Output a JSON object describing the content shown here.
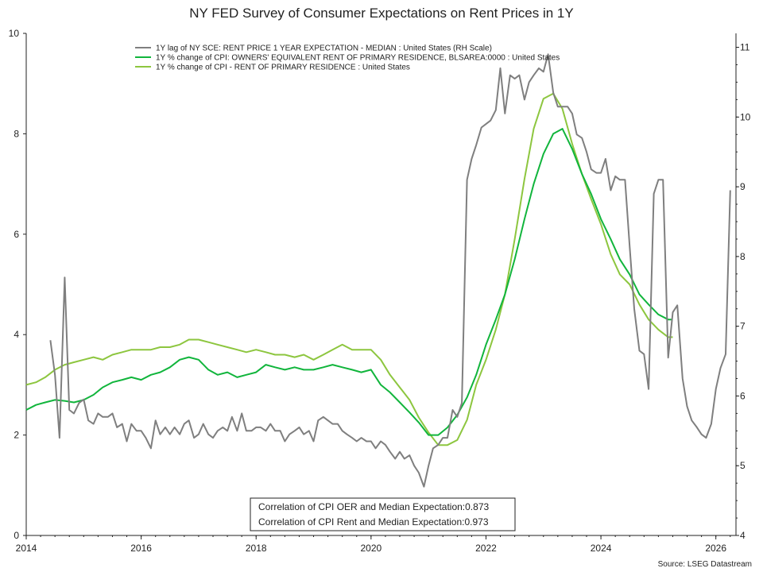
{
  "chart_data": {
    "type": "line",
    "title": "NY FED Survey of Consumer Expectations on Rent Prices in 1Y",
    "source": "Source: LSEG Datastream",
    "x_range": [
      2014.0,
      2026.35
    ],
    "x_ticks": [
      "2014",
      "2016",
      "2018",
      "2020",
      "2022",
      "2024",
      "2026"
    ],
    "x_tick_values": [
      2014,
      2016,
      2018,
      2020,
      2022,
      2024,
      2026
    ],
    "ylim_left": [
      0,
      10
    ],
    "y_ticks_left": [
      "0",
      "2",
      "4",
      "6",
      "8",
      "10"
    ],
    "y_tick_values_left": [
      0,
      2,
      4,
      6,
      8,
      10
    ],
    "ylim_right": [
      4,
      11.2
    ],
    "y_ticks_right": [
      "4",
      "5",
      "6",
      "7",
      "8",
      "9",
      "10",
      "11"
    ],
    "y_tick_values_right": [
      4,
      5,
      6,
      7,
      8,
      9,
      10,
      11
    ],
    "legend_position": "top",
    "grid": false,
    "annotations": [
      "Correlation of CPI OER and Median Expectation:0.873",
      "Correlation of CPI Rent and Median Expectation:0.973"
    ],
    "series": [
      {
        "name": "1Y lag of NY SCE: RENT PRICE 1 YEAR EXPECTATION - MEDIAN : United States (RH Scale)",
        "axis": "right",
        "color": "#7f7f7f",
        "x": [
          2014.42,
          2014.5,
          2014.58,
          2014.67,
          2014.75,
          2014.83,
          2014.92,
          2015.0,
          2015.08,
          2015.17,
          2015.25,
          2015.33,
          2015.42,
          2015.5,
          2015.58,
          2015.67,
          2015.75,
          2015.83,
          2015.92,
          2016.0,
          2016.08,
          2016.17,
          2016.25,
          2016.33,
          2016.42,
          2016.5,
          2016.58,
          2016.67,
          2016.75,
          2016.83,
          2016.92,
          2017.0,
          2017.08,
          2017.17,
          2017.25,
          2017.33,
          2017.42,
          2017.5,
          2017.58,
          2017.67,
          2017.75,
          2017.83,
          2017.92,
          2018.0,
          2018.08,
          2018.17,
          2018.25,
          2018.33,
          2018.42,
          2018.5,
          2018.58,
          2018.67,
          2018.75,
          2018.83,
          2018.92,
          2019.0,
          2019.08,
          2019.17,
          2019.25,
          2019.33,
          2019.42,
          2019.5,
          2019.58,
          2019.67,
          2019.75,
          2019.83,
          2019.92,
          2020.0,
          2020.08,
          2020.17,
          2020.25,
          2020.33,
          2020.42,
          2020.5,
          2020.58,
          2020.67,
          2020.75,
          2020.83,
          2020.92,
          2021.0,
          2021.08,
          2021.17,
          2021.25,
          2021.33,
          2021.42,
          2021.5,
          2021.58,
          2021.67,
          2021.75,
          2021.83,
          2021.92,
          2022.0,
          2022.08,
          2022.17,
          2022.25,
          2022.33,
          2022.42,
          2022.5,
          2022.58,
          2022.67,
          2022.75,
          2022.83,
          2022.92,
          2023.0,
          2023.08,
          2023.17,
          2023.25,
          2023.33,
          2023.42,
          2023.5,
          2023.58,
          2023.67,
          2023.75,
          2023.83,
          2023.92,
          2024.0,
          2024.08,
          2024.17,
          2024.25,
          2024.33,
          2024.42,
          2024.5,
          2024.58,
          2024.67,
          2024.75,
          2024.83,
          2024.92,
          2025.0,
          2025.08,
          2025.17,
          2025.25,
          2025.33,
          2025.42,
          2025.5,
          2025.58,
          2025.67,
          2025.75,
          2025.83,
          2025.92,
          2026.0,
          2026.08,
          2026.17,
          2026.25
        ],
        "values": [
          6.8,
          6.3,
          5.4,
          7.7,
          5.8,
          5.75,
          5.9,
          5.95,
          5.65,
          5.6,
          5.75,
          5.7,
          5.7,
          5.75,
          5.55,
          5.6,
          5.35,
          5.6,
          5.5,
          5.5,
          5.4,
          5.25,
          5.65,
          5.45,
          5.55,
          5.45,
          5.55,
          5.45,
          5.6,
          5.65,
          5.4,
          5.45,
          5.6,
          5.45,
          5.4,
          5.5,
          5.55,
          5.5,
          5.7,
          5.5,
          5.75,
          5.5,
          5.5,
          5.55,
          5.55,
          5.5,
          5.6,
          5.5,
          5.5,
          5.35,
          5.45,
          5.5,
          5.55,
          5.45,
          5.5,
          5.35,
          5.65,
          5.7,
          5.65,
          5.6,
          5.6,
          5.5,
          5.45,
          5.4,
          5.35,
          5.4,
          5.35,
          5.35,
          5.25,
          5.35,
          5.3,
          5.2,
          5.1,
          5.2,
          5.1,
          5.15,
          5.0,
          4.9,
          4.7,
          5.0,
          5.25,
          5.3,
          5.4,
          5.4,
          5.8,
          5.7,
          5.9,
          9.1,
          9.4,
          9.6,
          9.85,
          9.9,
          9.95,
          10.1,
          10.7,
          10.05,
          10.6,
          10.55,
          10.6,
          10.25,
          10.5,
          10.6,
          10.7,
          10.65,
          10.9,
          10.35,
          10.15,
          10.15,
          10.15,
          10.05,
          9.75,
          9.7,
          9.5,
          9.25,
          9.2,
          9.2,
          9.4,
          8.95,
          9.15,
          9.1,
          9.1,
          8.15,
          7.25,
          6.65,
          6.6,
          6.1,
          8.9,
          9.1,
          9.1,
          6.55,
          7.2,
          7.3,
          6.25,
          5.85,
          5.65,
          5.55,
          5.45,
          5.4,
          5.6,
          6.1,
          6.4,
          6.6,
          8.95
        ],
        "values_note": "right axis"
      },
      {
        "name": "1Y % change of CPI: OWNERS' EQUIVALENT RENT OF PRIMARY RESIDENCE, BLSAREA:0000 : United States",
        "axis": "left",
        "color": "#11b53c",
        "x": [
          2014.0,
          2014.17,
          2014.33,
          2014.5,
          2014.67,
          2014.83,
          2015.0,
          2015.17,
          2015.33,
          2015.5,
          2015.67,
          2015.83,
          2016.0,
          2016.17,
          2016.33,
          2016.5,
          2016.67,
          2016.83,
          2017.0,
          2017.17,
          2017.33,
          2017.5,
          2017.67,
          2017.83,
          2018.0,
          2018.17,
          2018.33,
          2018.5,
          2018.67,
          2018.83,
          2019.0,
          2019.17,
          2019.33,
          2019.5,
          2019.67,
          2019.83,
          2020.0,
          2020.17,
          2020.33,
          2020.5,
          2020.67,
          2020.83,
          2021.0,
          2021.17,
          2021.33,
          2021.5,
          2021.67,
          2021.83,
          2022.0,
          2022.17,
          2022.33,
          2022.5,
          2022.67,
          2022.83,
          2023.0,
          2023.17,
          2023.33,
          2023.5,
          2023.67,
          2023.83,
          2024.0,
          2024.17,
          2024.33,
          2024.5,
          2024.67,
          2024.83,
          2025.0,
          2025.17,
          2025.25
        ],
        "values": [
          2.5,
          2.6,
          2.65,
          2.7,
          2.68,
          2.65,
          2.7,
          2.8,
          2.95,
          3.05,
          3.1,
          3.15,
          3.1,
          3.2,
          3.25,
          3.35,
          3.5,
          3.55,
          3.5,
          3.3,
          3.2,
          3.25,
          3.15,
          3.2,
          3.25,
          3.4,
          3.35,
          3.3,
          3.35,
          3.3,
          3.3,
          3.35,
          3.4,
          3.35,
          3.3,
          3.25,
          3.3,
          3.0,
          2.85,
          2.65,
          2.45,
          2.25,
          2.0,
          2.0,
          2.15,
          2.4,
          2.75,
          3.2,
          3.8,
          4.3,
          4.8,
          5.5,
          6.3,
          7.0,
          7.6,
          8.0,
          8.1,
          7.7,
          7.2,
          6.8,
          6.3,
          5.9,
          5.5,
          5.2,
          4.8,
          4.6,
          4.4,
          4.3,
          4.3
        ]
      },
      {
        "name": "1Y % change of CPI - RENT OF PRIMARY RESIDENCE : United States",
        "axis": "left",
        "color": "#8dc63f",
        "x": [
          2014.0,
          2014.17,
          2014.33,
          2014.5,
          2014.67,
          2014.83,
          2015.0,
          2015.17,
          2015.33,
          2015.5,
          2015.67,
          2015.83,
          2016.0,
          2016.17,
          2016.33,
          2016.5,
          2016.67,
          2016.83,
          2017.0,
          2017.17,
          2017.33,
          2017.5,
          2017.67,
          2017.83,
          2018.0,
          2018.17,
          2018.33,
          2018.5,
          2018.67,
          2018.83,
          2019.0,
          2019.17,
          2019.33,
          2019.5,
          2019.67,
          2019.83,
          2020.0,
          2020.17,
          2020.33,
          2020.5,
          2020.67,
          2020.83,
          2021.0,
          2021.17,
          2021.33,
          2021.5,
          2021.67,
          2021.83,
          2022.0,
          2022.17,
          2022.33,
          2022.5,
          2022.67,
          2022.83,
          2023.0,
          2023.17,
          2023.33,
          2023.5,
          2023.67,
          2023.83,
          2024.0,
          2024.17,
          2024.33,
          2024.5,
          2024.67,
          2024.83,
          2025.0,
          2025.17,
          2025.25
        ],
        "values": [
          3.0,
          3.05,
          3.15,
          3.3,
          3.4,
          3.45,
          3.5,
          3.55,
          3.5,
          3.6,
          3.65,
          3.7,
          3.7,
          3.7,
          3.75,
          3.75,
          3.8,
          3.9,
          3.9,
          3.85,
          3.8,
          3.75,
          3.7,
          3.65,
          3.7,
          3.65,
          3.6,
          3.6,
          3.55,
          3.6,
          3.5,
          3.6,
          3.7,
          3.8,
          3.7,
          3.7,
          3.7,
          3.5,
          3.2,
          2.95,
          2.7,
          2.35,
          2.05,
          1.8,
          1.8,
          1.9,
          2.3,
          3.0,
          3.5,
          4.1,
          4.8,
          5.9,
          7.1,
          8.1,
          8.7,
          8.8,
          8.5,
          7.8,
          7.2,
          6.7,
          6.2,
          5.6,
          5.2,
          5.0,
          4.6,
          4.3,
          4.1,
          3.95,
          3.95
        ]
      }
    ]
  }
}
